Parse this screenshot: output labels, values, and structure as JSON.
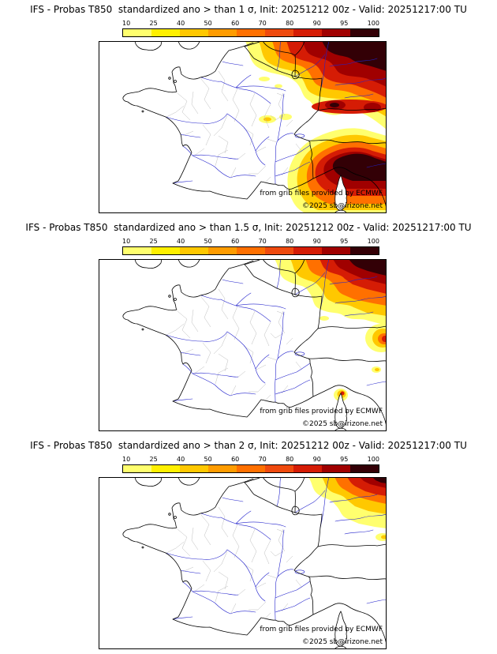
{
  "panels": [
    {
      "id": "1-sigma",
      "title": "IFS - Probas T850  standardized ano > than 1 σ, Init: 20251212 00z - Valid: 20251217:00 TU",
      "credit_provider": "from grib files provided by ECMWF",
      "credit_copyright": "©2025 sb@irizone.net"
    },
    {
      "id": "1.5-sigma",
      "title": "IFS - Probas T850  standardized ano > than 1.5 σ, Init: 20251212 00z - Valid: 20251217:00 TU",
      "credit_provider": "from grib files provided by ECMWF",
      "credit_copyright": "©2025 sb@irizone.net"
    },
    {
      "id": "2-sigma",
      "title": "IFS - Probas T850  standardized ano > than 2 σ, Init: 20251212 00z - Valid: 20251217:00 TU",
      "credit_provider": "from grib files provided by ECMWF",
      "credit_copyright": "©2025 sb@irizone.net"
    }
  ],
  "colorbar": {
    "ticks": [
      "10",
      "25",
      "40",
      "50",
      "60",
      "70",
      "80",
      "90",
      "95",
      "100"
    ],
    "segment_colors": [
      "#ffff6e",
      "#fff000",
      "#ffc800",
      "#ff9c00",
      "#ff7000",
      "#ef4a0e",
      "#d51c05",
      "#a00000",
      "#330006"
    ]
  },
  "map": {
    "colors": {
      "river": "#2222cc",
      "border": "#000000",
      "department": "#bdbdbd",
      "sea": "#ffffff"
    }
  }
}
